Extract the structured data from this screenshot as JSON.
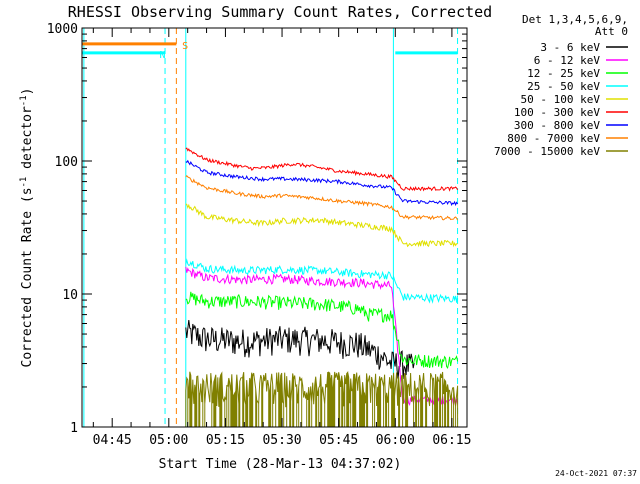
{
  "chart_data": {
    "type": "line",
    "title": "RHESSI Observing Summary Count Rates, Corrected",
    "xlabel": "Start Time (28-Mar-13 04:37:02)",
    "ylabel_parts": [
      "Corrected Count Rate (s",
      "-1",
      " detector",
      "-1",
      ")"
    ],
    "y_scale": "log",
    "ylim": [
      1,
      1000
    ],
    "xlim_minutes": [
      277,
      379
    ],
    "x_ticks": [
      {
        "minute": 285,
        "label": "04:45"
      },
      {
        "minute": 300,
        "label": "05:00"
      },
      {
        "minute": 315,
        "label": "05:15"
      },
      {
        "minute": 330,
        "label": "05:30"
      },
      {
        "minute": 345,
        "label": "05:45"
      },
      {
        "minute": 360,
        "label": "06:00"
      },
      {
        "minute": 375,
        "label": "06:15"
      }
    ],
    "y_ticks": [
      {
        "value": 1,
        "label": "1"
      },
      {
        "value": 10,
        "label": "10"
      },
      {
        "value": 100,
        "label": "100"
      },
      {
        "value": 1000,
        "label": "1000"
      }
    ],
    "legend_header": [
      "Det 1,3,4,5,6,9,",
      "Att 0"
    ],
    "legend_position": "right",
    "series": [
      {
        "name": "3 - 6 keV",
        "color": "#000000",
        "noise": 0.25,
        "points": [
          [
            304.5,
            5.2
          ],
          [
            310,
            4.6
          ],
          [
            320,
            4.4
          ],
          [
            330,
            4.6
          ],
          [
            340,
            4.5
          ],
          [
            350,
            4.2
          ],
          [
            356,
            3.5
          ],
          [
            359,
            3.0
          ],
          [
            362,
            3.0
          ],
          [
            365,
            2.8
          ]
        ]
      },
      {
        "name": "6 - 12 keV",
        "color": "#ff00ff",
        "noise": 0.08,
        "points": [
          [
            304.5,
            15.0
          ],
          [
            310,
            13.2
          ],
          [
            320,
            12.8
          ],
          [
            330,
            13.0
          ],
          [
            340,
            12.5
          ],
          [
            350,
            12.2
          ],
          [
            359,
            11.5
          ],
          [
            362,
            1.6
          ],
          [
            376.5,
            1.6
          ]
        ]
      },
      {
        "name": "12 - 25 keV",
        "color": "#00ff00",
        "noise": 0.12,
        "points": [
          [
            304.5,
            9.5
          ],
          [
            310,
            8.8
          ],
          [
            320,
            8.8
          ],
          [
            330,
            8.6
          ],
          [
            340,
            8.4
          ],
          [
            350,
            7.8
          ],
          [
            353,
            7.0
          ],
          [
            359,
            7.0
          ],
          [
            362,
            3.2
          ],
          [
            376.5,
            3.1
          ]
        ]
      },
      {
        "name": "25 - 50 keV",
        "color": "#00ffff",
        "noise": 0.07,
        "points": [
          [
            304.5,
            18.0
          ],
          [
            310,
            15.5
          ],
          [
            320,
            15.0
          ],
          [
            330,
            15.3
          ],
          [
            340,
            15.0
          ],
          [
            350,
            14.2
          ],
          [
            359,
            13.8
          ],
          [
            362,
            9.5
          ],
          [
            376.5,
            9.2
          ]
        ]
      },
      {
        "name": "50 - 100 keV",
        "color": "#e0e000",
        "noise": 0.05,
        "points": [
          [
            304.5,
            48.0
          ],
          [
            310,
            38.0
          ],
          [
            320,
            35.0
          ],
          [
            325,
            34.0
          ],
          [
            330,
            35.5
          ],
          [
            340,
            36.0
          ],
          [
            345,
            34.5
          ],
          [
            355,
            32.0
          ],
          [
            359,
            31.0
          ],
          [
            362,
            24.0
          ],
          [
            376.5,
            24.0
          ]
        ]
      },
      {
        "name": "100 - 300 keV",
        "color": "#ff0000",
        "noise": 0.03,
        "points": [
          [
            304.5,
            125.0
          ],
          [
            310,
            102.0
          ],
          [
            318,
            92.0
          ],
          [
            322,
            88.0
          ],
          [
            326,
            89.0
          ],
          [
            333,
            95.0
          ],
          [
            338,
            91.0
          ],
          [
            345,
            84.0
          ],
          [
            352,
            80.0
          ],
          [
            359,
            76.0
          ],
          [
            362,
            62.0
          ],
          [
            376.5,
            62.0
          ]
        ]
      },
      {
        "name": "300 - 800 keV",
        "color": "#0000ff",
        "noise": 0.03,
        "points": [
          [
            304.5,
            100.0
          ],
          [
            310,
            82.0
          ],
          [
            318,
            76.0
          ],
          [
            325,
            73.0
          ],
          [
            330,
            73.5
          ],
          [
            338,
            72.0
          ],
          [
            345,
            70.0
          ],
          [
            352,
            66.0
          ],
          [
            359,
            63.0
          ],
          [
            362,
            50.0
          ],
          [
            376.5,
            48.0
          ]
        ]
      },
      {
        "name": "800 - 7000 keV",
        "color": "#ff8000",
        "noise": 0.03,
        "points": [
          [
            304.5,
            76.0
          ],
          [
            310,
            63.0
          ],
          [
            318,
            57.0
          ],
          [
            325,
            54.0
          ],
          [
            330,
            55.0
          ],
          [
            338,
            53.0
          ],
          [
            345,
            50.0
          ],
          [
            352,
            48.0
          ],
          [
            359,
            45.0
          ],
          [
            362,
            38.0
          ],
          [
            376.5,
            37.0
          ]
        ]
      },
      {
        "name": "7000 - 15000 keV",
        "color": "#808000",
        "noise": 0.3,
        "fill_to_baseline": true,
        "points": [
          [
            304.5,
            2.5
          ],
          [
            306,
            2.0
          ],
          [
            320,
            2.0
          ],
          [
            340,
            2.0
          ],
          [
            355,
            2.0
          ],
          [
            362,
            2.0
          ],
          [
            376.5,
            2.0
          ]
        ]
      }
    ],
    "flag_lines": [
      {
        "name": "S",
        "color": "#ff8000",
        "y": 760,
        "x_start": 277,
        "x_end": 302,
        "label_minute": 303.0
      },
      {
        "name": "N",
        "color": "#00ffff",
        "y": 650,
        "x_start": 277,
        "x_end": 299,
        "label_minute": 297.0
      },
      {
        "name": "",
        "color": "#00ffff",
        "y": 650,
        "x_start": 360,
        "x_end": 376.5,
        "label_minute": null
      }
    ],
    "vertical_markers": [
      {
        "minute": 277.5,
        "color": "#00ffff",
        "style": "solid"
      },
      {
        "minute": 299.0,
        "color": "#00ffff",
        "style": "dashed"
      },
      {
        "minute": 302.0,
        "color": "#ff8000",
        "style": "dashed"
      },
      {
        "minute": 304.5,
        "color": "#00ffff",
        "style": "solid"
      },
      {
        "minute": 359.5,
        "color": "#00ffff",
        "style": "solid"
      },
      {
        "minute": 376.5,
        "color": "#00ffff",
        "style": "dashed"
      }
    ],
    "footer_date": "24-Oct-2021 07:37"
  }
}
